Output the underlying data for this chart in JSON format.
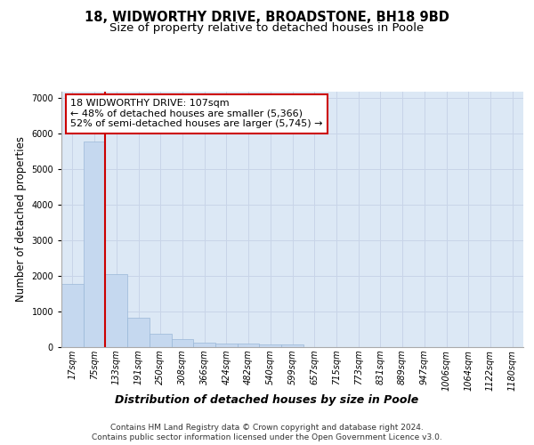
{
  "title_line1": "18, WIDWORTHY DRIVE, BROADSTONE, BH18 9BD",
  "title_line2": "Size of property relative to detached houses in Poole",
  "xlabel": "Distribution of detached houses by size in Poole",
  "ylabel": "Number of detached properties",
  "categories": [
    "17sqm",
    "75sqm",
    "133sqm",
    "191sqm",
    "250sqm",
    "308sqm",
    "366sqm",
    "424sqm",
    "482sqm",
    "540sqm",
    "599sqm",
    "657sqm",
    "715sqm",
    "773sqm",
    "831sqm",
    "889sqm",
    "947sqm",
    "1006sqm",
    "1064sqm",
    "1122sqm",
    "1180sqm"
  ],
  "values": [
    1780,
    5780,
    2060,
    820,
    370,
    220,
    120,
    100,
    90,
    70,
    65,
    0,
    0,
    0,
    0,
    0,
    0,
    0,
    0,
    0,
    0
  ],
  "bar_color": "#c5d8ef",
  "bar_edge_color": "#9ab8d8",
  "vline_color": "#cc0000",
  "vline_x_idx": 1.5,
  "annotation_text": "18 WIDWORTHY DRIVE: 107sqm\n← 48% of detached houses are smaller (5,366)\n52% of semi-detached houses are larger (5,745) →",
  "annotation_box_color": "#ffffff",
  "annotation_box_edge": "#cc0000",
  "ylim": [
    0,
    7200
  ],
  "yticks": [
    0,
    1000,
    2000,
    3000,
    4000,
    5000,
    6000,
    7000
  ],
  "grid_color": "#c8d4e8",
  "background_color": "#dce8f5",
  "footer_line1": "Contains HM Land Registry data © Crown copyright and database right 2024.",
  "footer_line2": "Contains public sector information licensed under the Open Government Licence v3.0.",
  "title_fontsize": 10.5,
  "subtitle_fontsize": 9.5,
  "annotation_fontsize": 8,
  "tick_fontsize": 7,
  "ylabel_fontsize": 8.5,
  "xlabel_fontsize": 9,
  "footer_fontsize": 6.5
}
